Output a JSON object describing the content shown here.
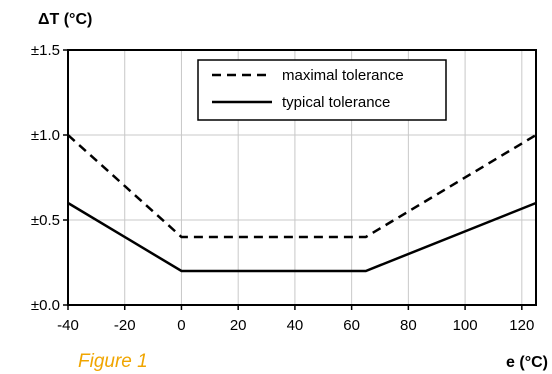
{
  "figure_caption": "Figure 1",
  "chart_data": {
    "type": "line",
    "title": "",
    "ylabel": "ΔT (°C)",
    "xlabel_visible_fragment": "e (°C)",
    "xlim": [
      -40,
      125
    ],
    "ylim": [
      0,
      1.5
    ],
    "x_ticks": [
      -40,
      -20,
      0,
      20,
      40,
      60,
      80,
      100,
      120
    ],
    "x_tick_labels": [
      "-40",
      "-20",
      "0",
      "20",
      "40",
      "60",
      "80",
      "100",
      "120"
    ],
    "y_ticks": [
      0,
      0.5,
      1.0,
      1.5
    ],
    "y_tick_labels": [
      "±0.0",
      "±0.5",
      "±1.0",
      "±1.5"
    ],
    "grid": true,
    "legend_position": "top-right",
    "series": [
      {
        "name": "maximal tolerance",
        "style": "dashed",
        "color": "#000000",
        "x": [
          -40,
          0,
          65,
          125
        ],
        "y": [
          1.0,
          0.4,
          0.4,
          1.0
        ]
      },
      {
        "name": "typical tolerance",
        "style": "solid",
        "color": "#000000",
        "x": [
          -40,
          0,
          65,
          125
        ],
        "y": [
          0.6,
          0.2,
          0.2,
          0.6
        ]
      }
    ]
  }
}
